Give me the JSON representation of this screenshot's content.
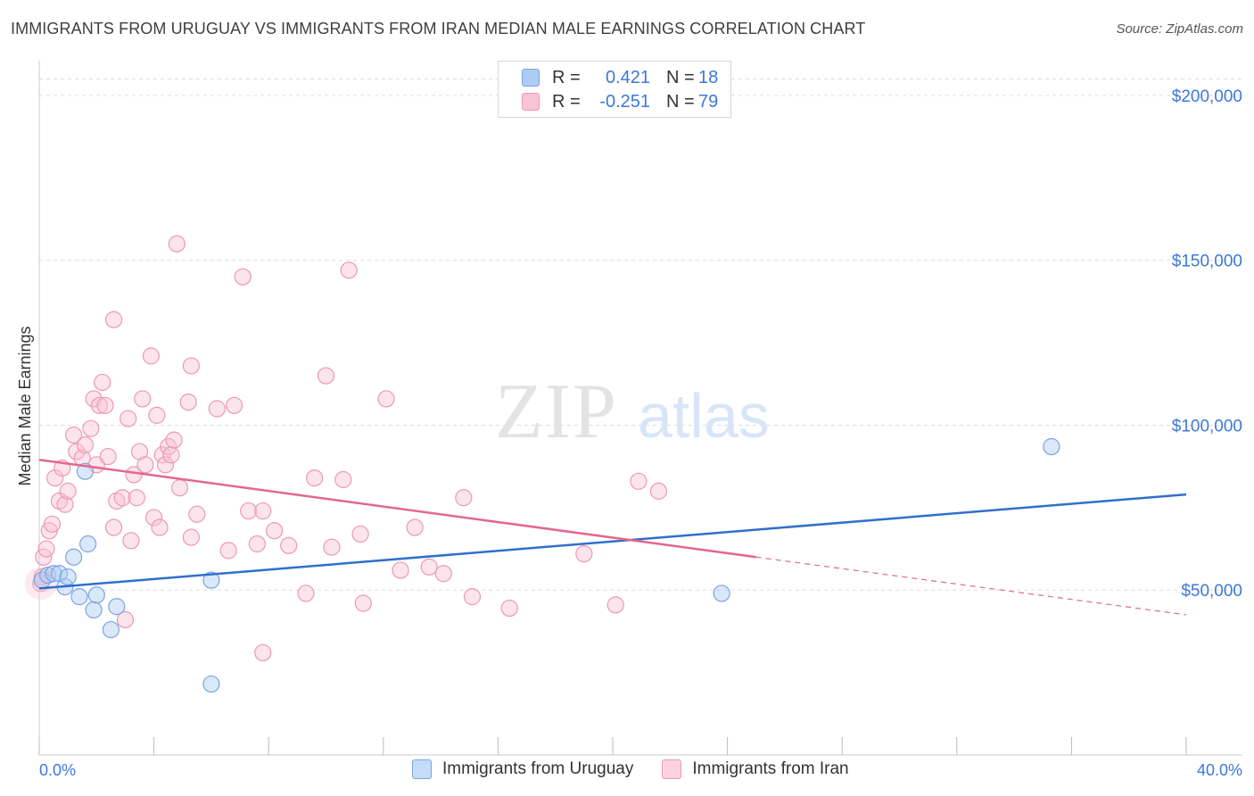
{
  "title": "IMMIGRANTS FROM URUGUAY VS IMMIGRANTS FROM IRAN MEDIAN MALE EARNINGS CORRELATION CHART",
  "source": "Source: ZipAtlas.com",
  "watermark": {
    "zip": "ZIP",
    "atlas": "atlas"
  },
  "legend_top": [
    {
      "r_label": "R =",
      "r_value": "0.421",
      "n_label": "N =",
      "n_value": "18"
    },
    {
      "r_label": "R =",
      "r_value": "-0.251",
      "n_label": "N =",
      "n_value": "79"
    }
  ],
  "legend_bottom": [
    "Immigrants from Uruguay",
    "Immigrants from Iran"
  ],
  "colors": {
    "uruguay_fill": "#aecbf5",
    "uruguay_stroke": "#7aa5e0",
    "uruguay_line": "#2f6fcc",
    "iran_fill": "#f9c4d4",
    "iran_stroke": "#ec98b3",
    "iran_line": "#e4668f",
    "axis_text": "#3c78d8",
    "grid": "#dddddd"
  },
  "chart_data": {
    "type": "scatter",
    "title": "IMMIGRANTS FROM URUGUAY VS IMMIGRANTS FROM IRAN MEDIAN MALE EARNINGS CORRELATION CHART",
    "xlabel": "",
    "ylabel": "Median Male Earnings",
    "xlim": [
      0,
      40
    ],
    "ylim": [
      0,
      210000
    ],
    "x_tick_labels": [
      "0.0%",
      "40.0%"
    ],
    "y_ticks": [
      50000,
      100000,
      150000,
      200000
    ],
    "y_tick_labels": [
      "$50,000",
      "$100,000",
      "$150,000",
      "$200,000"
    ],
    "grid": true,
    "series": [
      {
        "name": "Immigrants from Uruguay",
        "points": [
          [
            0.1,
            53000
          ],
          [
            0.3,
            54500
          ],
          [
            0.5,
            55000
          ],
          [
            0.7,
            55000
          ],
          [
            0.9,
            51000
          ],
          [
            1.0,
            54000
          ],
          [
            1.2,
            60000
          ],
          [
            1.4,
            48000
          ],
          [
            1.6,
            86000
          ],
          [
            1.7,
            64000
          ],
          [
            1.9,
            44000
          ],
          [
            2.0,
            48500
          ],
          [
            2.5,
            38000
          ],
          [
            2.7,
            45000
          ],
          [
            6.0,
            53000
          ],
          [
            6.0,
            21500
          ],
          [
            23.8,
            49000
          ],
          [
            35.3,
            93500
          ]
        ],
        "trend": {
          "x0": 0,
          "y0": 50500,
          "x1": 40,
          "y1": 79000
        }
      },
      {
        "name": "Immigrants from Iran",
        "points": [
          [
            0.05,
            52000
          ],
          [
            0.1,
            54000
          ],
          [
            0.15,
            60000
          ],
          [
            0.25,
            62500
          ],
          [
            0.35,
            68000
          ],
          [
            0.45,
            70000
          ],
          [
            0.55,
            84000
          ],
          [
            0.7,
            77000
          ],
          [
            0.8,
            87000
          ],
          [
            0.9,
            76000
          ],
          [
            1.0,
            80000
          ],
          [
            1.2,
            97000
          ],
          [
            1.3,
            92000
          ],
          [
            1.5,
            90000
          ],
          [
            1.6,
            94000
          ],
          [
            1.8,
            99000
          ],
          [
            1.9,
            108000
          ],
          [
            2.0,
            88000
          ],
          [
            2.1,
            106000
          ],
          [
            2.2,
            113000
          ],
          [
            2.3,
            106000
          ],
          [
            2.4,
            90500
          ],
          [
            2.6,
            69000
          ],
          [
            2.6,
            132000
          ],
          [
            2.7,
            77000
          ],
          [
            2.9,
            78000
          ],
          [
            3.0,
            41000
          ],
          [
            3.1,
            102000
          ],
          [
            3.2,
            65000
          ],
          [
            3.3,
            85000
          ],
          [
            3.4,
            78000
          ],
          [
            3.5,
            92000
          ],
          [
            3.6,
            108000
          ],
          [
            3.7,
            88000
          ],
          [
            3.9,
            121000
          ],
          [
            4.0,
            72000
          ],
          [
            4.1,
            103000
          ],
          [
            4.2,
            69000
          ],
          [
            4.3,
            91000
          ],
          [
            4.4,
            88000
          ],
          [
            4.5,
            93500
          ],
          [
            4.6,
            91000
          ],
          [
            4.7,
            95500
          ],
          [
            4.8,
            155000
          ],
          [
            4.9,
            81000
          ],
          [
            5.2,
            107000
          ],
          [
            5.3,
            118000
          ],
          [
            5.3,
            66000
          ],
          [
            5.5,
            73000
          ],
          [
            6.2,
            105000
          ],
          [
            6.6,
            62000
          ],
          [
            6.8,
            106000
          ],
          [
            7.1,
            145000
          ],
          [
            7.3,
            74000
          ],
          [
            7.6,
            64000
          ],
          [
            7.8,
            74000
          ],
          [
            7.8,
            31000
          ],
          [
            8.2,
            68000
          ],
          [
            8.7,
            63500
          ],
          [
            9.3,
            49000
          ],
          [
            9.6,
            84000
          ],
          [
            10.0,
            115000
          ],
          [
            10.2,
            63000
          ],
          [
            10.6,
            83500
          ],
          [
            10.8,
            147000
          ],
          [
            11.2,
            67000
          ],
          [
            11.3,
            46000
          ],
          [
            12.1,
            108000
          ],
          [
            12.6,
            56000
          ],
          [
            13.1,
            69000
          ],
          [
            13.6,
            57000
          ],
          [
            14.1,
            55000
          ],
          [
            14.8,
            78000
          ],
          [
            15.1,
            48000
          ],
          [
            16.4,
            44500
          ],
          [
            19.0,
            61000
          ],
          [
            20.1,
            45500
          ],
          [
            20.9,
            83000
          ],
          [
            21.6,
            80000
          ]
        ],
        "trend": {
          "x0": 0,
          "y0": 89500,
          "x1": 25,
          "y1": 60000,
          "dashed_to_x": 40,
          "dashed_to_y": 42500
        }
      }
    ]
  }
}
